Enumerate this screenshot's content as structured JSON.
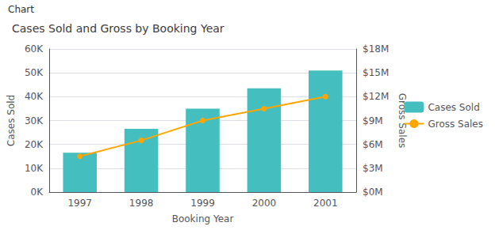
{
  "chart_data": {
    "type": "bar",
    "title": "Cases Sold and Gross by Booking Year",
    "annotations": [
      "Chart"
    ],
    "xlabel": "Booking Year",
    "ylabel": "Cases Sold",
    "y2label": "Gross Sales",
    "categories": [
      "1997",
      "1998",
      "1999",
      "2000",
      "2001"
    ],
    "series": [
      {
        "name": "Cases Sold",
        "type": "bar",
        "color": "#45BEC0",
        "values": [
          16500,
          26500,
          35000,
          43500,
          51000
        ]
      },
      {
        "name": "Gross Sales",
        "type": "line",
        "color": "#FFA500",
        "marker": "circle",
        "axis": "y2",
        "values": [
          4500000,
          6500000,
          9000000,
          10500000,
          12000000
        ]
      }
    ],
    "ylim": [
      0,
      60000
    ],
    "yticks": [
      {
        "value": 0,
        "label": "0K"
      },
      {
        "value": 10000,
        "label": "10K"
      },
      {
        "value": 20000,
        "label": "20K"
      },
      {
        "value": 30000,
        "label": "30K"
      },
      {
        "value": 40000,
        "label": "40K"
      },
      {
        "value": 50000,
        "label": "50K"
      },
      {
        "value": 60000,
        "label": "60K"
      }
    ],
    "y2lim": [
      0,
      18000000
    ],
    "y2ticks": [
      {
        "value": 0,
        "label": "$0M"
      },
      {
        "value": 3000000,
        "label": "$3M"
      },
      {
        "value": 6000000,
        "label": "$6M"
      },
      {
        "value": 9000000,
        "label": "$9M"
      },
      {
        "value": 12000000,
        "label": "$12M"
      },
      {
        "value": 15000000,
        "label": "$15M"
      },
      {
        "value": 18000000,
        "label": "$18M"
      }
    ],
    "grid": true,
    "legend": "right"
  }
}
